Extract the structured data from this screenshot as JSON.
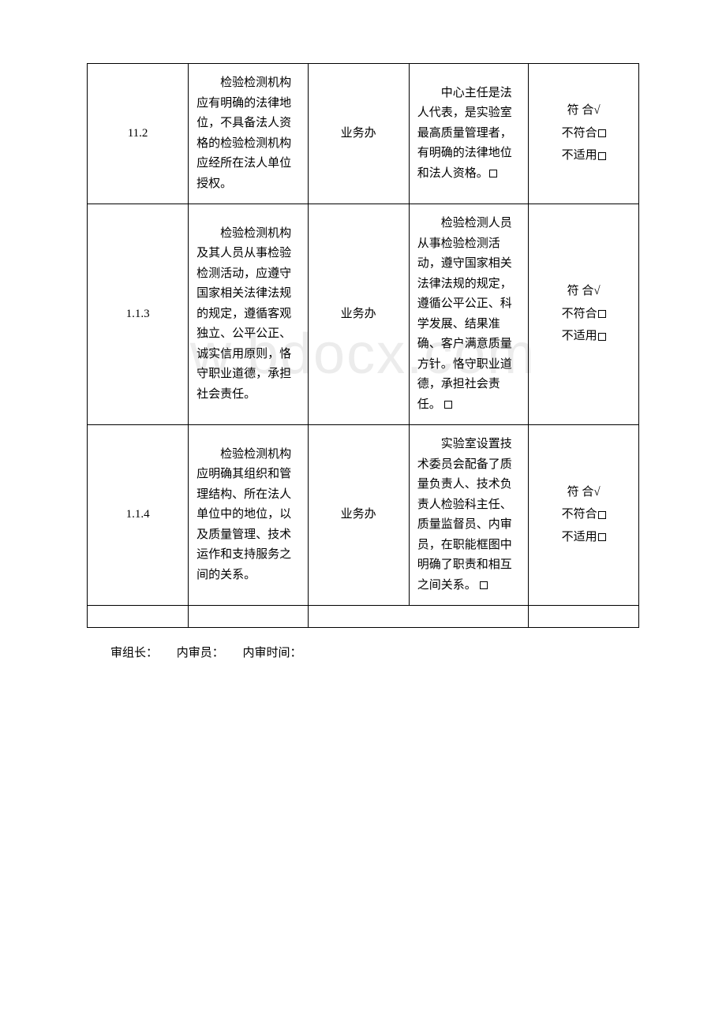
{
  "watermark": "w.bdocx.com",
  "rows": [
    {
      "num": "11.2",
      "criteria": "检验检测机构应有明确的法律地位，不具备法人资格的检验检测机构应经所在法人单位授权。",
      "dept": "业务办",
      "finding": "中心主任是法人代表，是实验室最高质量管理者，有明确的法律地位和法人资格。",
      "result": {
        "conform": "符 合√",
        "nonconform": "不符合",
        "na": "不适用"
      }
    },
    {
      "num": "1.1.3",
      "criteria": "检验检测机构及其人员从事检验检测活动，应遵守国家相关法律法规的规定，遵循客观独立、公平公正、诚实信用原则，恪守职业道德，承担社会责任。",
      "dept": "业务办",
      "finding": "检验检测人员从事检验检测活动，遵守国家相关法律法规的规定，遵循公平公正、科学发展、结果准确、客户满意质量方针。恪守职业道德，承担社会责任。",
      "result": {
        "conform": "符 合√",
        "nonconform": "不符合",
        "na": "不适用"
      }
    },
    {
      "num": "1.1.4",
      "criteria": "检验检测机构应明确其组织和管理结构、所在法人单位中的地位，以及质量管理、技术运作和支持服务之间的关系。",
      "dept": "业务办",
      "finding": "实验室设置技术委员会配备了质量负责人、技术负责人检验科主任、质量监督员、内审员，在职能框图中明确了职责和相互之间关系。",
      "result": {
        "conform": "符 合√",
        "nonconform": "不符合",
        "na": "不适用"
      }
    }
  ],
  "footer": {
    "leader": "审组长：",
    "auditor": "内审员：",
    "time": "内审时间："
  }
}
